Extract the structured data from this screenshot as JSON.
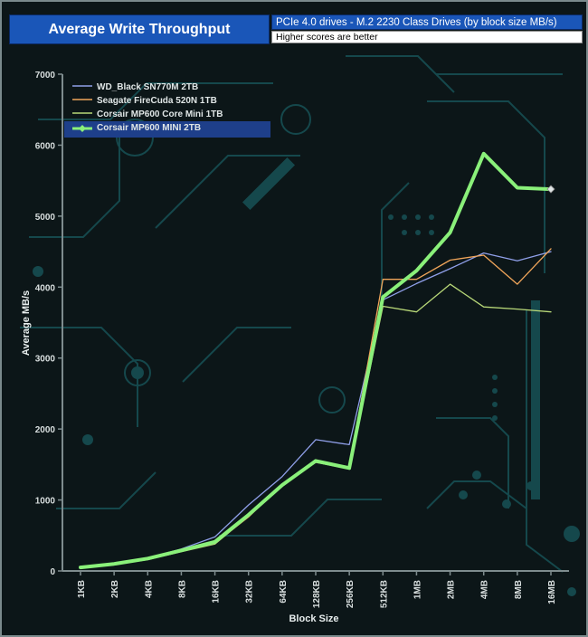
{
  "header": {
    "title": "Average Write Throughput",
    "subtitle": "PCIe 4.0 drives - M.2 2230 Class Drives (by block size MB/s)",
    "note": "Higher scores are better"
  },
  "colors": {
    "background": "#0c1618",
    "circuit": "#15484c",
    "axis": "#7e8c8e",
    "highlight_box": "#1e3f8a"
  },
  "chart_data": {
    "type": "line",
    "title": "Average Write Throughput",
    "subtitle": "PCIe 4.0 drives - M.2 2230 Class Drives (by block size MB/s)",
    "xlabel": "Block Size",
    "ylabel": "Average MB/s",
    "ylim": [
      0,
      7000
    ],
    "yticks": [
      0,
      1000,
      2000,
      3000,
      4000,
      5000,
      6000,
      7000
    ],
    "categories": [
      "1KB",
      "2KB",
      "4KB",
      "8KB",
      "16KB",
      "32KB",
      "64KB",
      "128KB",
      "256KB",
      "512KB",
      "1MB",
      "2MB",
      "4MB",
      "8MB",
      "16MB"
    ],
    "grid": false,
    "legend_position": "top-left",
    "series": [
      {
        "name": "WD_Black SN770M 2TB",
        "color": "#8f9fe8",
        "width": 1.3,
        "highlight": false,
        "values": [
          50,
          100,
          180,
          310,
          480,
          930,
          1330,
          1850,
          1780,
          3820,
          4050,
          4260,
          4480,
          4370,
          4500
        ]
      },
      {
        "name": "Seagate FireCuda 520N 1TB",
        "color": "#f0a55a",
        "width": 1.3,
        "highlight": false,
        "values": [
          45,
          95,
          165,
          280,
          390,
          760,
          1220,
          1550,
          1460,
          4110,
          4110,
          4380,
          4450,
          4040,
          4540
        ]
      },
      {
        "name": "Corsair MP600 Core Mini 1TB",
        "color": "#b8d878",
        "width": 1.3,
        "highlight": false,
        "values": [
          40,
          90,
          160,
          270,
          380,
          770,
          1200,
          1530,
          1440,
          3730,
          3650,
          4040,
          3720,
          3690,
          3650
        ]
      },
      {
        "name": "Corsair MP600 MINI 2TB",
        "color": "#8af07a",
        "width": 4,
        "highlight": true,
        "values": [
          50,
          100,
          175,
          290,
          410,
          790,
          1210,
          1550,
          1450,
          3860,
          4230,
          4770,
          5880,
          5400,
          5380
        ]
      }
    ]
  }
}
